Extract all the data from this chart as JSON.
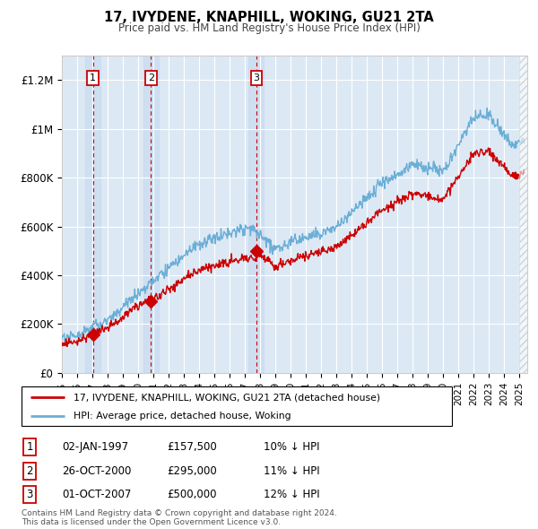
{
  "title": "17, IVYDENE, KNAPHILL, WOKING, GU21 2TA",
  "subtitle": "Price paid vs. HM Land Registry's House Price Index (HPI)",
  "background_color": "#ffffff",
  "plot_bg_color": "#dce9f5",
  "hpi_line_color": "#6baed6",
  "price_line_color": "#cc0000",
  "sale_marker_color": "#cc0000",
  "dashed_line_color": "#cc0000",
  "vspan_color": "#c6d9f0",
  "ylim": [
    0,
    1300000
  ],
  "yticks": [
    0,
    200000,
    400000,
    600000,
    800000,
    1000000,
    1200000
  ],
  "ytick_labels": [
    "£0",
    "£200K",
    "£400K",
    "£600K",
    "£800K",
    "£1M",
    "£1.2M"
  ],
  "xlim_start": 1995.0,
  "xlim_end": 2025.5,
  "sale_dates": [
    1997.04,
    2000.83,
    2007.75
  ],
  "sale_prices": [
    157500,
    295000,
    500000
  ],
  "sale_labels": [
    "1",
    "2",
    "3"
  ],
  "sale_date_labels": [
    "02-JAN-1997",
    "26-OCT-2000",
    "01-OCT-2007"
  ],
  "sale_price_labels": [
    "£157,500",
    "£295,000",
    "£500,000"
  ],
  "sale_pct_labels": [
    "10% ↓ HPI",
    "11% ↓ HPI",
    "12% ↓ HPI"
  ],
  "legend_line1": "17, IVYDENE, KNAPHILL, WOKING, GU21 2TA (detached house)",
  "legend_line2": "HPI: Average price, detached house, Woking",
  "footer1": "Contains HM Land Registry data © Crown copyright and database right 2024.",
  "footer2": "This data is licensed under the Open Government Licence v3.0."
}
